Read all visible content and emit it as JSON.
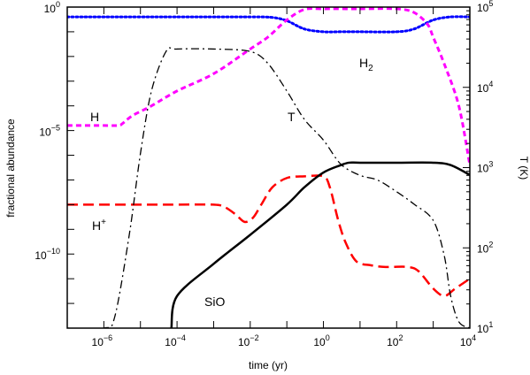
{
  "chart_data": {
    "type": "line",
    "xlabel": "time (yr)",
    "ylabel": "fractional abundance",
    "y2label": "T (K)",
    "xscale": "log",
    "yscale": "log",
    "y2scale": "log",
    "xlim": [
      1e-07,
      10000
    ],
    "ylim": [
      1e-13,
      1
    ],
    "y2lim": [
      10,
      100000
    ],
    "grid": false,
    "x_ticks": [
      {
        "value": 1e-06,
        "base": "10",
        "exp": "−6"
      },
      {
        "value": 0.0001,
        "base": "10",
        "exp": "−4"
      },
      {
        "value": 0.01,
        "base": "10",
        "exp": "−2"
      },
      {
        "value": 1,
        "base": "10",
        "exp": "0"
      },
      {
        "value": 100,
        "base": "10",
        "exp": "2"
      },
      {
        "value": 10000,
        "base": "10",
        "exp": "4"
      }
    ],
    "y_ticks": [
      {
        "value": 1,
        "base": "10",
        "exp": "0"
      },
      {
        "value": 1e-05,
        "base": "10",
        "exp": "−5"
      },
      {
        "value": 1e-10,
        "base": "10",
        "exp": "−10"
      }
    ],
    "y2_ticks": [
      {
        "value": 100000,
        "base": "10",
        "exp": "5"
      },
      {
        "value": 10000,
        "base": "10",
        "exp": "4"
      },
      {
        "value": 1000,
        "base": "10",
        "exp": "3"
      },
      {
        "value": 100,
        "base": "10",
        "exp": "2"
      },
      {
        "value": 10,
        "base": "10",
        "exp": "1"
      }
    ],
    "series": [
      {
        "name": "H2",
        "label_base": "H",
        "label_sub": "2",
        "axis": "left",
        "color": "#0000ff",
        "style": "dotted",
        "x": [
          1e-07,
          0.0001,
          0.01,
          0.04,
          0.1,
          0.3,
          1,
          3,
          10,
          100,
          300,
          1000,
          3000,
          10000
        ],
        "y": [
          0.4,
          0.4,
          0.4,
          0.38,
          0.28,
          0.13,
          0.1,
          0.1,
          0.1,
          0.1,
          0.13,
          0.3,
          0.4,
          0.4
        ]
      },
      {
        "name": "H",
        "label_base": "H",
        "axis": "left",
        "color": "#ff00ff",
        "style": "dashed",
        "x": [
          1e-07,
          1e-06,
          2.5e-06,
          3.2e-06,
          6e-06,
          2e-05,
          0.0001,
          0.001,
          0.01,
          0.03,
          0.1,
          0.3,
          1,
          10,
          100,
          300,
          700,
          1000,
          2000,
          5000,
          10000
        ],
        "y": [
          1.6e-05,
          1.6e-05,
          1.6e-05,
          1.9e-05,
          4e-05,
          0.0001,
          0.0004,
          0.002,
          0.02,
          0.06,
          0.3,
          0.8,
          0.85,
          0.85,
          0.85,
          0.6,
          0.2,
          0.06,
          0.005,
          0.0001,
          4e-07
        ]
      },
      {
        "name": "H+",
        "label_base": "H",
        "label_sup": "+",
        "axis": "left",
        "color": "#ff0000",
        "style": "long-dashed",
        "x": [
          1e-07,
          1e-05,
          0.0001,
          0.001,
          0.002,
          0.004,
          0.007,
          0.012,
          0.02,
          0.04,
          0.1,
          0.3,
          1,
          1.5,
          2.5,
          4,
          8,
          20,
          50,
          200,
          400,
          1000,
          2000,
          4000,
          10000
        ],
        "y": [
          1e-08,
          1e-08,
          1e-08,
          1e-08,
          8e-09,
          4e-09,
          2e-09,
          3e-09,
          1e-08,
          5e-08,
          1.2e-07,
          1.4e-07,
          1.4e-07,
          5e-08,
          2.5e-09,
          3e-10,
          5e-11,
          3.5e-11,
          3e-11,
          3e-11,
          2e-11,
          4e-12,
          2e-12,
          4e-12,
          1e-11
        ]
      },
      {
        "name": "SiO",
        "label_base": "SiO",
        "axis": "left",
        "color": "#000000",
        "style": "solid",
        "x": [
          7e-05,
          0.0001,
          0.001,
          0.01,
          0.1,
          0.3,
          1,
          3,
          5,
          10,
          100,
          1000,
          3000,
          10000
        ],
        "y": [
          1e-13,
          2e-12,
          4e-11,
          6e-10,
          1e-08,
          5e-08,
          2e-07,
          4e-07,
          5e-07,
          5e-07,
          5e-07,
          5e-07,
          4e-07,
          1.6e-07
        ]
      },
      {
        "name": "T",
        "label_base": "T",
        "axis": "right",
        "color": "#000000",
        "style": "dash-dot",
        "x": [
          1e-07,
          1e-06,
          2e-06,
          5e-06,
          1e-05,
          2e-05,
          5e-05,
          0.0001,
          0.001,
          0.01,
          0.03,
          0.1,
          0.3,
          1,
          3,
          10,
          30,
          100,
          300,
          1000,
          2000,
          3000,
          5000,
          10000
        ],
        "y": [
          10,
          10,
          14,
          150,
          1500,
          9000,
          28000,
          30000,
          30000,
          28000,
          20000,
          9000,
          4000,
          2200,
          1100,
          800,
          700,
          500,
          350,
          220,
          80,
          25,
          12,
          10
        ]
      }
    ]
  }
}
